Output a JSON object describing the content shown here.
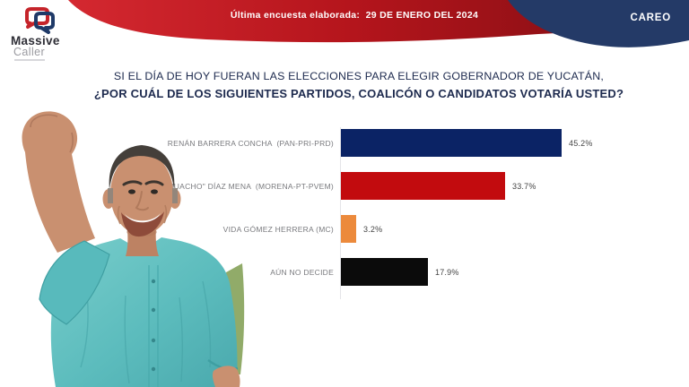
{
  "brand": {
    "name_line1": "Massive",
    "name_line2": "Caller"
  },
  "banner": {
    "text": "Última encuesta elaborada:  29 DE ENERO DEL 2024"
  },
  "corner_tag": "CAREO",
  "title": {
    "line1": "SI EL DÍA DE HOY FUERAN LAS ELECCIONES PARA ELEGIR GOBERNADOR DE YUCATÁN,",
    "line2": "¿POR CUÁL DE LOS SIGUIENTES PARTIDOS, COALICÓN  O CANDIDATOS VOTARÍA USTED?"
  },
  "chart_data": {
    "type": "bar",
    "orientation": "horizontal",
    "categories": [
      "RENÁN BARRERA CONCHA  (PAN-PRI-PRD)",
      "\"HUACHO\" DÍAZ MENA  (MORENA-PT-PVEM)",
      "VIDA GÓMEZ HERRERA (MC)",
      "AÚN NO DECIDE"
    ],
    "values": [
      45.2,
      33.7,
      3.2,
      17.9
    ],
    "value_labels": [
      "45.2%",
      "33.7%",
      "3.2%",
      "17.9%"
    ],
    "bar_colors": [
      "#0b2365",
      "#c20b0e",
      "#ec8a3c",
      "#0b0b0b"
    ],
    "xlim": [
      0,
      50
    ],
    "grid": false,
    "legend": false
  },
  "photo": {
    "alt": "candidate-with-raised-fist"
  },
  "colors": {
    "ribbon_red_light": "#d42830",
    "ribbon_red_dark": "#7c0d12",
    "ribbon_navy": "#243a67",
    "title_navy": "#1d2a4e"
  }
}
